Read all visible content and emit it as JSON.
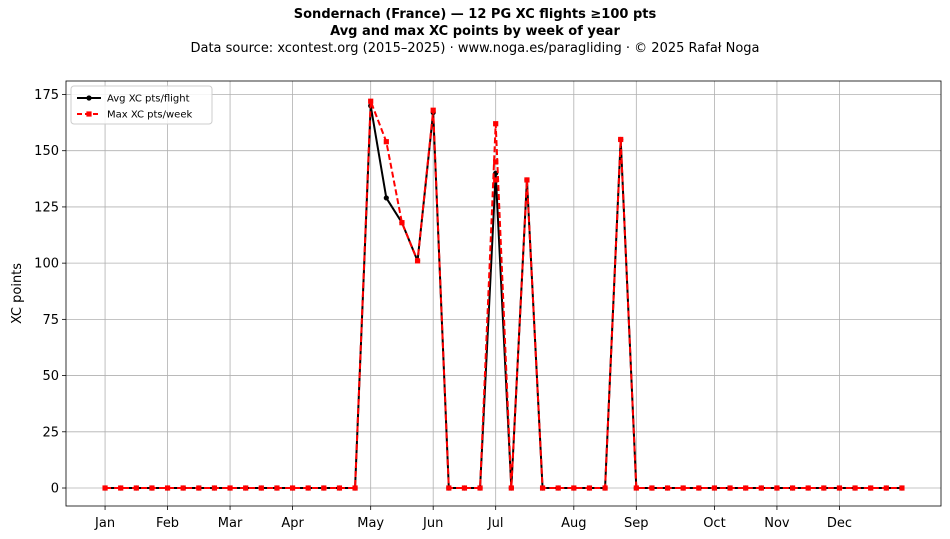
{
  "figure": {
    "title_line1": "Sondernach (France)  —  12 PG XC flights ≥100 pts",
    "title_line2": "Avg and max XC points by week of year",
    "subtitle": "Data source: xcontest.org (2015–2025)  ·  www.noga.es/paragliding  ·  © 2025 Rafał Noga"
  },
  "chart_data": {
    "type": "line",
    "x_unit": "week of year",
    "ylabel": "XC points",
    "ylim": [
      -8,
      181
    ],
    "xlim": [
      -2.5,
      53.5
    ],
    "yticks": [
      0,
      25,
      50,
      75,
      100,
      125,
      150,
      175
    ],
    "month_ticks": [
      {
        "label": "Jan",
        "week": 0
      },
      {
        "label": "Feb",
        "week": 4
      },
      {
        "label": "Mar",
        "week": 8
      },
      {
        "label": "Apr",
        "week": 12
      },
      {
        "label": "May",
        "week": 17
      },
      {
        "label": "Jun",
        "week": 21
      },
      {
        "label": "Jul",
        "week": 25
      },
      {
        "label": "Aug",
        "week": 30
      },
      {
        "label": "Sep",
        "week": 34
      },
      {
        "label": "Oct",
        "week": 39
      },
      {
        "label": "Nov",
        "week": 43
      },
      {
        "label": "Dec",
        "week": 47
      }
    ],
    "grid": true,
    "legend_position": "top-left",
    "x": [
      0,
      1,
      2,
      3,
      4,
      5,
      6,
      7,
      8,
      9,
      10,
      11,
      12,
      13,
      14,
      15,
      16,
      17,
      18,
      19,
      20,
      21,
      22,
      23,
      24,
      25,
      26,
      27,
      28,
      29,
      30,
      31,
      32,
      33,
      34,
      35,
      36,
      37,
      38,
      39,
      40,
      41,
      42,
      43,
      44,
      45,
      46,
      47,
      48,
      49,
      50,
      51
    ],
    "series": [
      {
        "name": "Avg XC pts/flight",
        "color": "#000000",
        "style": "solid",
        "marker": "circle",
        "values": [
          0,
          0,
          0,
          0,
          0,
          0,
          0,
          0,
          0,
          0,
          0,
          0,
          0,
          0,
          0,
          0,
          0,
          170,
          129,
          118,
          101,
          167,
          0,
          0,
          0,
          140,
          0,
          137,
          0,
          0,
          0,
          0,
          0,
          155,
          0,
          0,
          0,
          0,
          0,
          0,
          0,
          0,
          0,
          0,
          0,
          0,
          0,
          0,
          0,
          0,
          0,
          0
        ]
      },
      {
        "name": "Max XC pts/week",
        "color": "#ff0000",
        "style": "dashed",
        "marker": "square",
        "values": [
          0,
          0,
          0,
          0,
          0,
          0,
          0,
          0,
          0,
          0,
          0,
          0,
          0,
          0,
          0,
          0,
          0,
          172,
          154,
          118,
          101,
          168,
          0,
          0,
          0,
          162,
          0,
          137,
          0,
          0,
          0,
          0,
          0,
          155,
          0,
          0,
          0,
          0,
          0,
          0,
          0,
          0,
          0,
          0,
          0,
          0,
          0,
          0,
          0,
          0,
          0,
          0
        ]
      }
    ],
    "extra_points": [
      {
        "series": 1,
        "x": 25,
        "y": 145
      },
      {
        "series": 1,
        "x": 25,
        "y": 137
      }
    ]
  }
}
